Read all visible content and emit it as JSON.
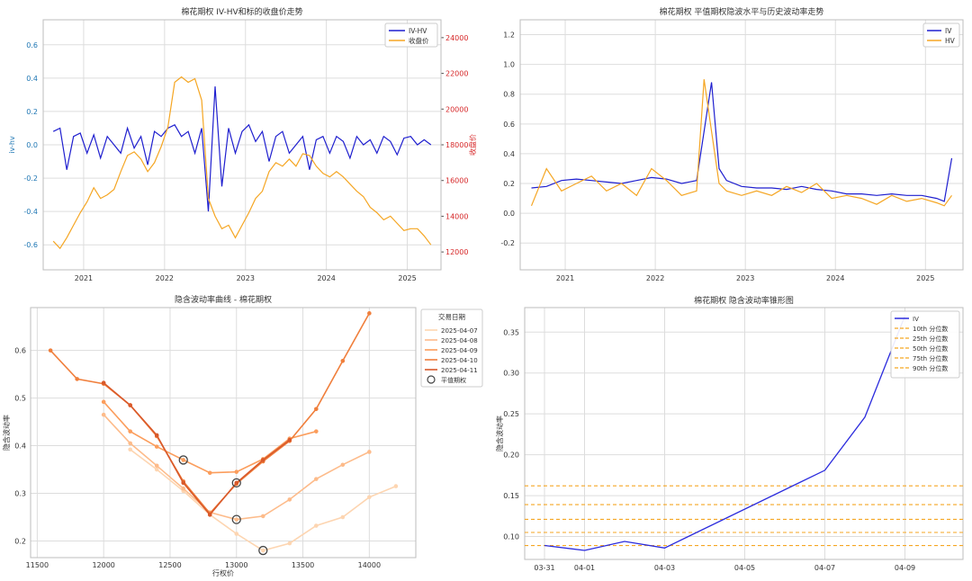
{
  "chart_data": [
    {
      "type": "line",
      "title": "棉花期权 IV-HV和标的收盘价走势",
      "ylabel": "iv-hv",
      "y2label": "收盘价",
      "ylim": [
        -0.75,
        0.75
      ],
      "y2lim": [
        11000,
        25000
      ],
      "xlim": [
        "2020-07",
        "2025-06"
      ],
      "x_ticks": [
        "2021",
        "2022",
        "2023",
        "2024",
        "2025"
      ],
      "y_ticks": [
        "-0.6",
        "-0.4",
        "-0.2",
        "0.0",
        "0.2",
        "0.4",
        "0.6"
      ],
      "y2_ticks": [
        "12000",
        "14000",
        "16000",
        "18000",
        "20000",
        "22000",
        "24000"
      ],
      "grid": true,
      "legend": "top-right",
      "series": [
        {
          "name": "IV-HV",
          "color": "#1f1fcf",
          "axis": "left",
          "x": [
            "2020-08",
            "2020-09",
            "2020-10",
            "2020-11",
            "2020-12",
            "2021-01",
            "2021-02",
            "2021-03",
            "2021-04",
            "2021-05",
            "2021-06",
            "2021-07",
            "2021-08",
            "2021-09",
            "2021-10",
            "2021-11",
            "2021-12",
            "2022-01",
            "2022-02",
            "2022-03",
            "2022-04",
            "2022-05",
            "2022-06",
            "2022-07",
            "2022-08",
            "2022-09",
            "2022-10",
            "2022-11",
            "2022-12",
            "2023-01",
            "2023-02",
            "2023-03",
            "2023-04",
            "2023-05",
            "2023-06",
            "2023-07",
            "2023-08",
            "2023-09",
            "2023-10",
            "2023-11",
            "2023-12",
            "2024-01",
            "2024-02",
            "2024-03",
            "2024-04",
            "2024-05",
            "2024-06",
            "2024-07",
            "2024-08",
            "2024-09",
            "2024-10",
            "2024-11",
            "2024-12",
            "2025-01",
            "2025-02",
            "2025-03",
            "2025-04"
          ],
          "values": [
            0.08,
            0.1,
            -0.15,
            0.05,
            0.07,
            -0.05,
            0.06,
            -0.08,
            0.05,
            0.0,
            -0.05,
            0.1,
            -0.02,
            0.05,
            -0.12,
            0.08,
            0.05,
            0.1,
            0.12,
            0.05,
            0.08,
            -0.05,
            0.1,
            -0.4,
            0.35,
            -0.25,
            0.1,
            -0.05,
            0.08,
            0.12,
            0.02,
            0.08,
            -0.1,
            0.05,
            0.08,
            -0.05,
            0.0,
            0.05,
            -0.15,
            0.03,
            0.05,
            -0.05,
            0.05,
            0.02,
            -0.08,
            0.05,
            0.0,
            0.03,
            -0.05,
            0.05,
            0.02,
            -0.06,
            0.04,
            0.05,
            0.0,
            0.03,
            0.0
          ]
        },
        {
          "name": "收盘价",
          "color": "#f5a623",
          "axis": "right",
          "x": [
            "2020-08",
            "2020-09",
            "2020-10",
            "2020-11",
            "2020-12",
            "2021-01",
            "2021-02",
            "2021-03",
            "2021-04",
            "2021-05",
            "2021-06",
            "2021-07",
            "2021-08",
            "2021-09",
            "2021-10",
            "2021-11",
            "2021-12",
            "2022-01",
            "2022-02",
            "2022-03",
            "2022-04",
            "2022-05",
            "2022-06",
            "2022-07",
            "2022-08",
            "2022-09",
            "2022-10",
            "2022-11",
            "2022-12",
            "2023-01",
            "2023-02",
            "2023-03",
            "2023-04",
            "2023-05",
            "2023-06",
            "2023-07",
            "2023-08",
            "2023-09",
            "2023-10",
            "2023-11",
            "2023-12",
            "2024-01",
            "2024-02",
            "2024-03",
            "2024-04",
            "2024-05",
            "2024-06",
            "2024-07",
            "2024-08",
            "2024-09",
            "2024-10",
            "2024-11",
            "2024-12",
            "2025-01",
            "2025-02",
            "2025-03",
            "2025-04"
          ],
          "values": [
            12600,
            12200,
            12800,
            13500,
            14200,
            14800,
            15600,
            15000,
            15200,
            15500,
            16500,
            17400,
            17600,
            17200,
            16500,
            17000,
            17900,
            19000,
            21500,
            21800,
            21500,
            21700,
            20500,
            15000,
            14000,
            13300,
            13500,
            12800,
            13500,
            14200,
            15000,
            15400,
            16500,
            17000,
            16800,
            17200,
            16800,
            17500,
            17400,
            16800,
            16400,
            16200,
            16500,
            16200,
            15800,
            15400,
            15100,
            14500,
            14200,
            13800,
            14000,
            13600,
            13200,
            13300,
            13300,
            12900,
            12400
          ]
        }
      ]
    },
    {
      "type": "line",
      "title": "棉花期权 平值期权隐波水平与历史波动率走势",
      "ylim": [
        -0.38,
        1.3
      ],
      "xlim": [
        "2020-07",
        "2025-06"
      ],
      "x_ticks": [
        "2021",
        "2022",
        "2023",
        "2024",
        "2025"
      ],
      "y_ticks": [
        "-0.2",
        "0.0",
        "0.2",
        "0.4",
        "0.6",
        "0.8",
        "1.0",
        "1.2"
      ],
      "grid": true,
      "legend": "top-right",
      "series": [
        {
          "name": "IV",
          "color": "#1f1fcf",
          "x": [
            "2020-08",
            "2020-10",
            "2020-12",
            "2021-02",
            "2021-04",
            "2021-06",
            "2021-08",
            "2021-10",
            "2021-12",
            "2022-02",
            "2022-04",
            "2022-06",
            "2022-07",
            "2022-08",
            "2022-09",
            "2022-10",
            "2022-12",
            "2023-02",
            "2023-04",
            "2023-06",
            "2023-08",
            "2023-10",
            "2023-12",
            "2024-02",
            "2024-04",
            "2024-06",
            "2024-08",
            "2024-10",
            "2024-12",
            "2025-02",
            "2025-03",
            "2025-04"
          ],
          "values": [
            0.17,
            0.18,
            0.22,
            0.23,
            0.22,
            0.21,
            0.2,
            0.22,
            0.24,
            0.23,
            0.2,
            0.22,
            0.55,
            0.88,
            0.3,
            0.22,
            0.18,
            0.17,
            0.17,
            0.16,
            0.18,
            0.16,
            0.15,
            0.13,
            0.13,
            0.12,
            0.13,
            0.12,
            0.12,
            0.1,
            0.08,
            0.37
          ]
        },
        {
          "name": "HV",
          "color": "#f5a623",
          "x": [
            "2020-08",
            "2020-10",
            "2020-12",
            "2021-02",
            "2021-04",
            "2021-06",
            "2021-08",
            "2021-10",
            "2021-12",
            "2022-02",
            "2022-04",
            "2022-06",
            "2022-07",
            "2022-08",
            "2022-09",
            "2022-10",
            "2022-12",
            "2023-02",
            "2023-04",
            "2023-06",
            "2023-08",
            "2023-10",
            "2023-12",
            "2024-02",
            "2024-04",
            "2024-06",
            "2024-08",
            "2024-10",
            "2024-12",
            "2025-02",
            "2025-03",
            "2025-04"
          ],
          "values": [
            0.05,
            0.3,
            0.15,
            0.2,
            0.25,
            0.15,
            0.2,
            0.12,
            0.3,
            0.22,
            0.12,
            0.15,
            0.9,
            0.55,
            0.2,
            0.15,
            0.12,
            0.15,
            0.12,
            0.18,
            0.14,
            0.2,
            0.1,
            0.12,
            0.1,
            0.06,
            0.12,
            0.08,
            0.1,
            0.07,
            0.05,
            0.12
          ]
        }
      ]
    },
    {
      "type": "line",
      "title": "隐含波动率曲线 - 棉花期权",
      "xlabel": "行权价",
      "ylabel": "隐含波动率",
      "xlim": [
        11450,
        14350
      ],
      "ylim": [
        0.165,
        0.69
      ],
      "x_ticks": [
        11500,
        12000,
        12500,
        13000,
        13500,
        14000
      ],
      "y_ticks": [
        "0.2",
        "0.3",
        "0.4",
        "0.5",
        "0.6"
      ],
      "grid": true,
      "legend_title": "交易日期",
      "legend": "top-right",
      "atm_label": "平值期权",
      "series": [
        {
          "name": "2025-04-07",
          "color": "#fdd5b1",
          "x": [
            12200,
            12400,
            12600,
            12800,
            13000,
            13200,
            13400,
            13600,
            13800,
            14000,
            14200
          ],
          "values": [
            0.392,
            0.35,
            0.305,
            0.255,
            0.215,
            0.18,
            0.195,
            0.232,
            0.25,
            0.292,
            0.315
          ]
        },
        {
          "name": "2025-04-08",
          "color": "#fdbb8a",
          "x": [
            12000,
            12200,
            12400,
            12600,
            12800,
            13000,
            13200,
            13400,
            13600,
            13800,
            14000
          ],
          "values": [
            0.465,
            0.405,
            0.358,
            0.31,
            0.26,
            0.245,
            0.252,
            0.287,
            0.33,
            0.36,
            0.387
          ]
        },
        {
          "name": "2025-04-09",
          "color": "#fb9d5c",
          "x": [
            12000,
            12200,
            12400,
            12600,
            12800,
            13000,
            13200,
            13400,
            13600
          ],
          "values": [
            0.492,
            0.43,
            0.398,
            0.37,
            0.343,
            0.345,
            0.372,
            0.415,
            0.43
          ]
        },
        {
          "name": "2025-04-10",
          "color": "#f07f3c",
          "x": [
            11600,
            11800,
            12000,
            12200,
            12400,
            12600,
            12800,
            13000,
            13200,
            13400,
            13600,
            13800,
            14000
          ],
          "values": [
            0.6,
            0.54,
            0.53,
            0.485,
            0.42,
            0.325,
            0.258,
            0.32,
            0.367,
            0.41,
            0.477,
            0.578,
            0.678
          ]
        },
        {
          "name": "2025-04-11",
          "color": "#d9592a",
          "x": [
            12000,
            12200,
            12400,
            12600,
            12800,
            13000,
            13200,
            13400
          ],
          "values": [
            0.532,
            0.485,
            0.422,
            0.322,
            0.255,
            0.322,
            0.37,
            0.412
          ]
        }
      ],
      "atm_points": [
        {
          "x": 12600,
          "y": 0.37
        },
        {
          "x": 13000,
          "y": 0.322
        },
        {
          "x": 13000,
          "y": 0.245
        },
        {
          "x": 13200,
          "y": 0.18
        }
      ]
    },
    {
      "type": "line",
      "title": "棉花期权 隐含波动率锥形图",
      "ylabel": "隐含波动率",
      "x": [
        "03-31",
        "04-01",
        "04-02",
        "04-03",
        "04-04",
        "04-05",
        "04-06",
        "04-07",
        "04-08",
        "04-09",
        "04-10"
      ],
      "x_tick_labels": [
        "03-31",
        "04-01",
        "04-03",
        "04-05",
        "04-07",
        "04-09"
      ],
      "y_ticks": [
        "0.10",
        "0.15",
        "0.20",
        "0.25",
        "0.30",
        "0.35"
      ],
      "ylim": [
        0.072,
        0.38
      ],
      "grid": true,
      "legend": "top-right",
      "series": [
        {
          "name": "IV",
          "color": "#2b2bdd",
          "x": [
            "03-31",
            "04-01",
            "04-02",
            "04-03",
            "04-07",
            "04-08",
            "04-09"
          ],
          "values": [
            0.089,
            0.083,
            0.094,
            0.086,
            0.181,
            0.246,
            0.37
          ]
        }
      ],
      "percentiles": [
        {
          "name": "10th 分位数",
          "value": 0.089
        },
        {
          "name": "25th 分位数",
          "value": 0.105
        },
        {
          "name": "50th 分位数",
          "value": 0.121
        },
        {
          "name": "75th 分位数",
          "value": 0.139
        },
        {
          "name": "90th 分位数",
          "value": 0.162
        }
      ],
      "percentile_color": "#f5a623"
    }
  ]
}
